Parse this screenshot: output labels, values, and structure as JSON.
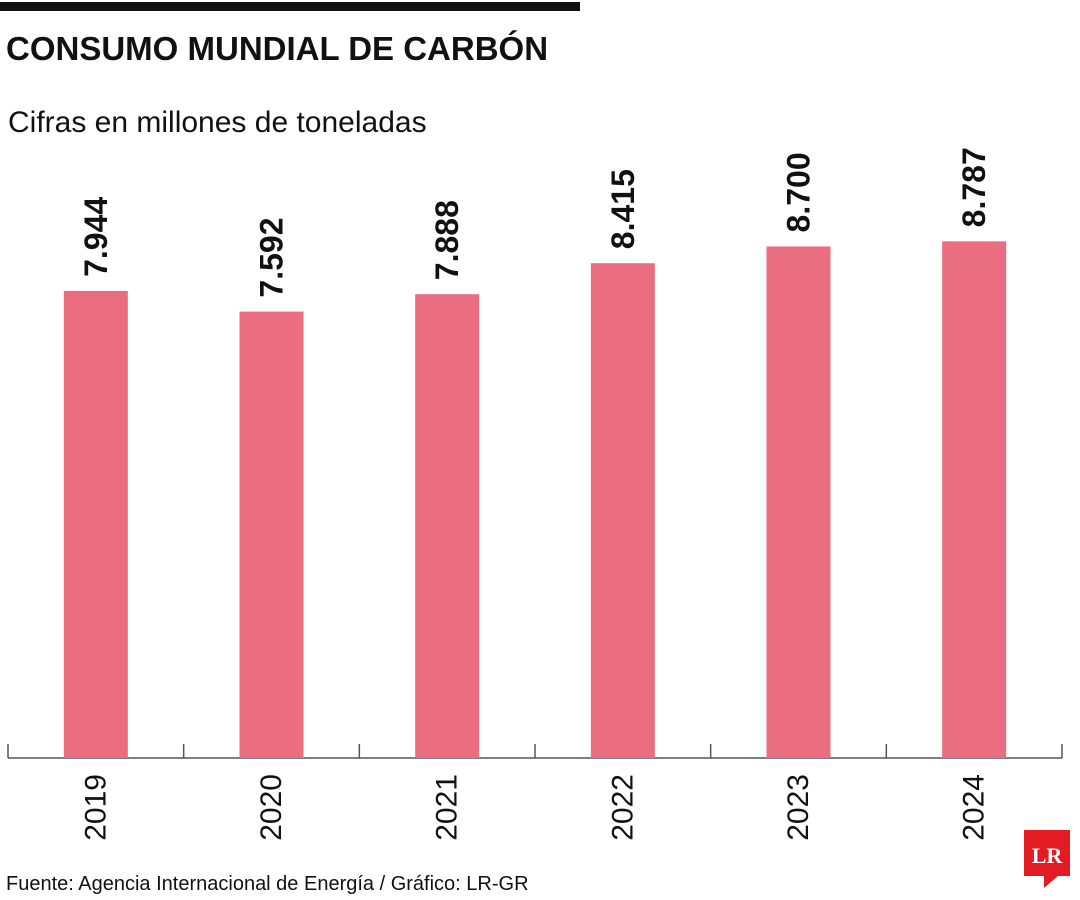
{
  "chart_data": {
    "type": "bar",
    "title": "CONSUMO MUNDIAL DE CARBÓN",
    "subtitle": "Cifras en millones de toneladas",
    "categories": [
      "2019",
      "2020",
      "2021",
      "2022",
      "2023",
      "2024"
    ],
    "values": [
      7944,
      7592,
      7888,
      8415,
      8700,
      8787
    ],
    "value_labels": [
      "7.944",
      "7.592",
      "7.888",
      "8.415",
      "8.700",
      "8.787"
    ],
    "color": "#eb6e80",
    "ylim": [
      0,
      10000
    ],
    "source": "Fuente: Agencia Internacional de Energía / Gráfico: LR-GR",
    "logo": "LR"
  }
}
